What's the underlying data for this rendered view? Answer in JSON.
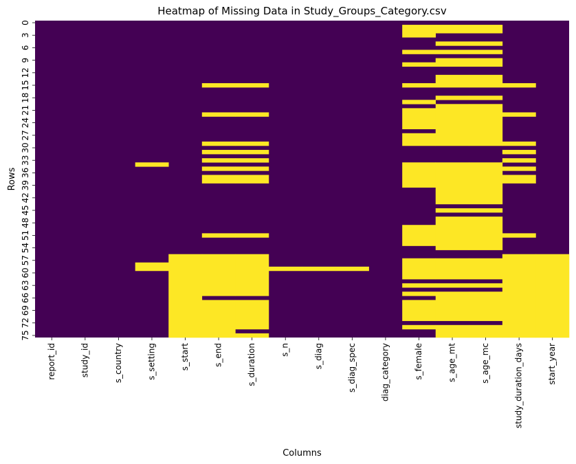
{
  "chart_data": {
    "type": "heatmap",
    "title": "Heatmap of Missing Data in Study_Groups_Category.csv",
    "xlabel": "Columns",
    "ylabel": "Rows",
    "columns": [
      "report_id",
      "study_id",
      "s_country",
      "s_setting",
      "s_start",
      "s_end",
      "s_duration",
      "s_n",
      "s_diag",
      "s_diag_spec",
      "diag_category",
      "s_female",
      "s_age_mt",
      "s_age_mc",
      "study_duration_days",
      "start_year"
    ],
    "row_count": 76,
    "y_tick_labels": [
      "0",
      "3",
      "6",
      "9",
      "12",
      "15",
      "18",
      "21",
      "24",
      "27",
      "30",
      "33",
      "36",
      "39",
      "42",
      "45",
      "48",
      "51",
      "54",
      "57",
      "60",
      "63",
      "66",
      "69",
      "72",
      "75"
    ],
    "y_tick_positions": [
      0,
      3,
      6,
      9,
      12,
      15,
      18,
      21,
      24,
      27,
      30,
      33,
      36,
      39,
      42,
      45,
      48,
      51,
      54,
      57,
      60,
      63,
      66,
      69,
      72,
      75
    ],
    "colors": {
      "missing": "#fde725",
      "present": "#440154"
    },
    "legend": "none",
    "grid": false,
    "missing_cells": {
      "s_setting": [
        [
          34,
          34
        ],
        [
          58,
          59
        ]
      ],
      "s_start": [
        [
          56,
          75
        ]
      ],
      "s_end": [
        [
          15,
          15
        ],
        [
          22,
          22
        ],
        [
          29,
          29
        ],
        [
          31,
          31
        ],
        [
          33,
          33
        ],
        [
          35,
          35
        ],
        [
          37,
          38
        ],
        [
          51,
          51
        ],
        [
          56,
          65
        ],
        [
          67,
          75
        ]
      ],
      "s_duration": [
        [
          15,
          15
        ],
        [
          22,
          22
        ],
        [
          29,
          29
        ],
        [
          31,
          31
        ],
        [
          33,
          33
        ],
        [
          35,
          35
        ],
        [
          37,
          38
        ],
        [
          51,
          51
        ],
        [
          56,
          65
        ],
        [
          67,
          73
        ],
        [
          75,
          75
        ]
      ],
      "s_n": [
        [
          59,
          59
        ]
      ],
      "s_diag": [
        [
          59,
          59
        ]
      ],
      "s_diag_spec": [
        [
          59,
          59
        ]
      ],
      "s_female": [
        [
          1,
          3
        ],
        [
          7,
          7
        ],
        [
          10,
          10
        ],
        [
          15,
          15
        ],
        [
          19,
          19
        ],
        [
          21,
          25
        ],
        [
          27,
          29
        ],
        [
          34,
          39
        ],
        [
          49,
          53
        ],
        [
          57,
          61
        ],
        [
          63,
          63
        ],
        [
          65,
          65
        ],
        [
          67,
          71
        ],
        [
          73,
          73
        ]
      ],
      "s_age_mt": [
        [
          1,
          2
        ],
        [
          5,
          5
        ],
        [
          7,
          7
        ],
        [
          9,
          10
        ],
        [
          13,
          15
        ],
        [
          18,
          18
        ],
        [
          20,
          29
        ],
        [
          34,
          43
        ],
        [
          45,
          45
        ],
        [
          47,
          54
        ],
        [
          57,
          61
        ],
        [
          63,
          63
        ],
        [
          65,
          71
        ],
        [
          73,
          75
        ]
      ],
      "s_age_mc": [
        [
          1,
          2
        ],
        [
          5,
          5
        ],
        [
          7,
          7
        ],
        [
          9,
          10
        ],
        [
          13,
          15
        ],
        [
          18,
          18
        ],
        [
          20,
          29
        ],
        [
          34,
          43
        ],
        [
          45,
          45
        ],
        [
          47,
          54
        ],
        [
          57,
          61
        ],
        [
          63,
          63
        ],
        [
          65,
          71
        ],
        [
          73,
          75
        ]
      ],
      "study_duration_days": [
        [
          15,
          15
        ],
        [
          22,
          22
        ],
        [
          29,
          29
        ],
        [
          31,
          31
        ],
        [
          33,
          33
        ],
        [
          35,
          35
        ],
        [
          37,
          38
        ],
        [
          51,
          51
        ],
        [
          56,
          75
        ]
      ],
      "start_year": [
        [
          56,
          75
        ]
      ]
    }
  }
}
